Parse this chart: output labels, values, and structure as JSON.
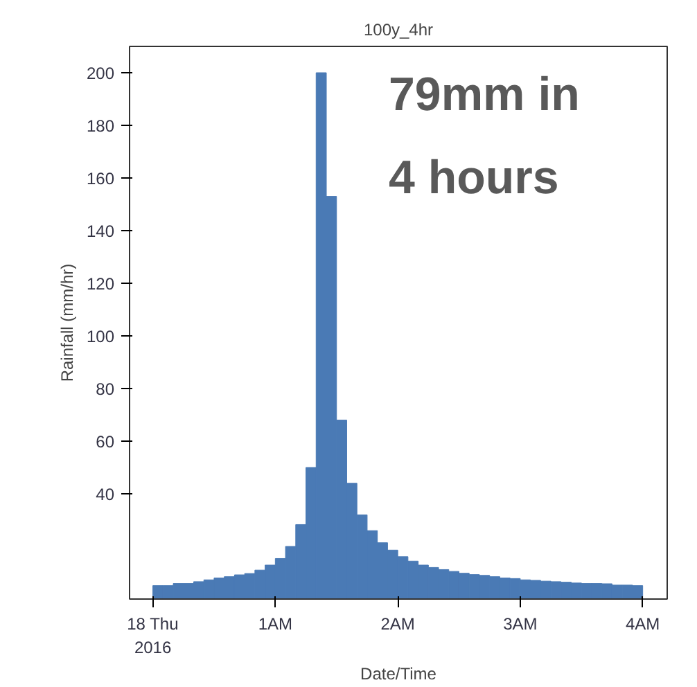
{
  "chart_data": {
    "type": "histogram",
    "title": "100y_4hr",
    "xlabel": "Date/Time",
    "ylabel": "Rainfall (mm/hr)",
    "annotations": [
      "79mm in\n4 hours"
    ],
    "bins": [
      0,
      0.0833,
      0.1667,
      0.25,
      0.3333,
      0.4167,
      0.5,
      0.5833,
      0.6667,
      0.75,
      0.8333,
      0.9167,
      1,
      1.0833,
      1.1667,
      1.25,
      1.3333,
      1.4167,
      1.5,
      1.5833,
      1.6667,
      1.75,
      1.8333,
      1.9167,
      2,
      2.0833,
      2.1667,
      2.25,
      2.3333,
      2.4167,
      2.5,
      2.5833,
      2.6667,
      2.75,
      2.8333,
      2.9167,
      3,
      3.0833,
      3.1667,
      3.25,
      3.3333,
      3.4167,
      3.5,
      3.5833,
      3.6667,
      3.75,
      3.8333,
      3.9167,
      4
    ],
    "values": [
      5.1,
      5.1,
      5.9,
      5.9,
      6.6,
      7.3,
      8.0,
      8.5,
      9.2,
      9.7,
      11.0,
      12.9,
      15.4,
      20.0,
      28.3,
      50,
      200,
      153,
      68,
      44,
      32,
      26,
      21.4,
      18.6,
      16.1,
      14.4,
      12.9,
      12.0,
      11.2,
      10.5,
      9.8,
      9.3,
      9.0,
      8.5,
      8.0,
      7.8,
      7.3,
      7.1,
      6.8,
      6.6,
      6.4,
      6.1,
      5.9,
      5.9,
      5.8,
      5.3,
      5.3,
      5.1
    ],
    "color": "#4a7ab5",
    "xlim": [
      -0.19,
      4.2
    ],
    "xticks": [
      {
        "value": 0,
        "label": "18 Thu\n2016"
      },
      {
        "value": 1,
        "label": "1AM"
      },
      {
        "value": 2,
        "label": "2AM"
      },
      {
        "value": 3,
        "label": "3AM"
      },
      {
        "value": 4,
        "label": "4AM"
      }
    ],
    "ylim": [
      0,
      210
    ],
    "yticks": [
      40,
      60,
      80,
      100,
      120,
      140,
      160,
      180,
      200
    ],
    "grid": false
  }
}
